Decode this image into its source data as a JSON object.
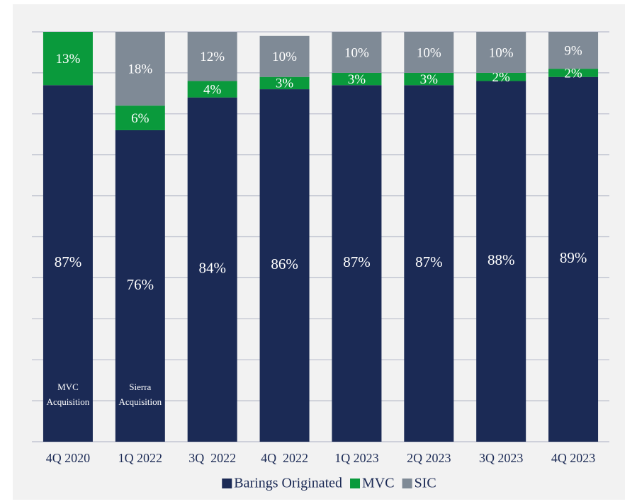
{
  "chart_data": {
    "type": "stacked-bar",
    "categories": [
      "4Q 2020",
      "1Q 2022",
      "3Q  2022",
      "4Q  2022",
      "1Q 2023",
      "2Q 2023",
      "3Q 2023",
      "4Q 2023"
    ],
    "series": [
      {
        "name": "Barings Originated",
        "color": "#1b2a55",
        "values": [
          87,
          76,
          84,
          86,
          87,
          87,
          88,
          89
        ],
        "value_labels": [
          "87%",
          "76%",
          "84%",
          "86%",
          "87%",
          "87%",
          "88%",
          "89%"
        ]
      },
      {
        "name": "MVC",
        "color": "#0a9a3c",
        "values": [
          13,
          6,
          4,
          3,
          3,
          3,
          2,
          2
        ],
        "value_labels": [
          "13%",
          "6%",
          "4%",
          "3%",
          "3%",
          "3%",
          "2%",
          "2%"
        ]
      },
      {
        "name": "SIC",
        "color": "#7f8a96",
        "values": [
          0,
          18,
          12,
          10,
          10,
          10,
          10,
          9
        ],
        "value_labels": [
          null,
          "18%",
          "12%",
          "10%",
          "10%",
          "10%",
          "10%",
          "9%"
        ]
      }
    ],
    "annotations": [
      "MVC Acquisition",
      "Sierra Acquisition"
    ],
    "ylim": [
      0,
      100
    ],
    "yticks": [
      0,
      10,
      20,
      30,
      40,
      50,
      60,
      70,
      80,
      90,
      100
    ],
    "grid": true
  }
}
